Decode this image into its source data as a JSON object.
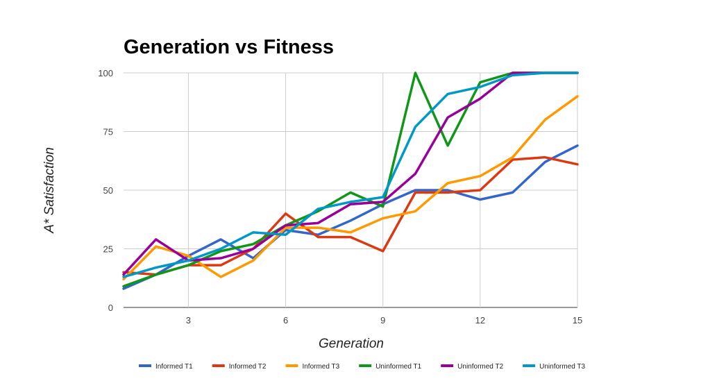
{
  "chart_data": {
    "type": "line",
    "title": "Generation vs Fitness",
    "xlabel": "Generation",
    "ylabel": "A* Satisfaction",
    "x": [
      1,
      2,
      3,
      4,
      5,
      6,
      7,
      8,
      9,
      10,
      11,
      12,
      13,
      14,
      15
    ],
    "xlim": [
      1,
      15
    ],
    "ylim": [
      0,
      100
    ],
    "xticks": [
      3,
      6,
      9,
      12,
      15
    ],
    "yticks": [
      0,
      25,
      50,
      75,
      100
    ],
    "grid": true,
    "legend_position": "bottom",
    "series": [
      {
        "name": "Informed T1",
        "color": "#3366cc",
        "values": [
          8,
          14,
          22,
          29,
          21,
          33,
          31,
          37,
          44,
          50,
          50,
          46,
          49,
          62,
          69
        ]
      },
      {
        "name": "Informed T2",
        "color": "#dc3912",
        "values": [
          15,
          14,
          18,
          18,
          25,
          40,
          30,
          30,
          24,
          49,
          49,
          50,
          63,
          64,
          61
        ]
      },
      {
        "name": "Informed T3",
        "color": "#ff9900",
        "values": [
          12,
          26,
          22,
          13,
          20,
          34,
          34,
          32,
          38,
          41,
          53,
          56,
          64,
          80,
          90
        ]
      },
      {
        "name": "Uninformed T1",
        "color": "#109618",
        "values": [
          9,
          14,
          18,
          24,
          27,
          35,
          41,
          49,
          43,
          100,
          69,
          96,
          100,
          100,
          100
        ]
      },
      {
        "name": "Uninformed T2",
        "color": "#990099",
        "values": [
          14,
          29,
          20,
          21,
          25,
          35,
          36,
          44,
          45,
          57,
          81,
          89,
          100,
          100,
          100
        ]
      },
      {
        "name": "Uninformed T3",
        "color": "#0099c6",
        "values": [
          13,
          17,
          20,
          25,
          32,
          31,
          42,
          45,
          47,
          77,
          91,
          94,
          99,
          100,
          100
        ]
      }
    ]
  }
}
